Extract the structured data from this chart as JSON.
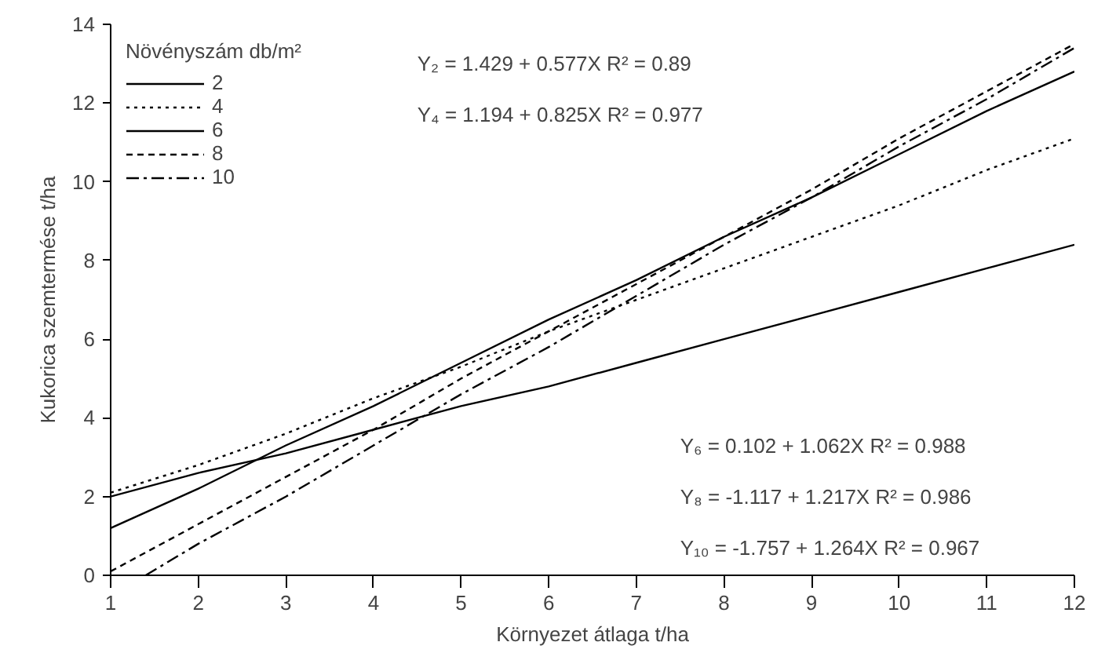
{
  "chart_data": {
    "type": "line",
    "xlabel": "Környezet átlaga t/ha",
    "ylabel": "Kukorica szemtermése t/ha",
    "legend_title": "Növényszám db/m²",
    "x": [
      1,
      2,
      3,
      4,
      5,
      6,
      7,
      8,
      9,
      10,
      11,
      12
    ],
    "series": [
      {
        "name": "2",
        "color": "#000000",
        "line_style": "solid",
        "values": [
          2.0,
          2.6,
          3.1,
          3.7,
          4.3,
          4.8,
          5.4,
          6.0,
          6.6,
          7.2,
          7.8,
          8.4
        ]
      },
      {
        "name": "4",
        "color": "#000000",
        "line_style": "dotted",
        "values": [
          2.1,
          2.8,
          3.6,
          4.5,
          5.3,
          6.2,
          7.0,
          7.8,
          8.6,
          9.4,
          10.3,
          11.1
        ]
      },
      {
        "name": "6",
        "color": "#000000",
        "line_style": "solid",
        "values": [
          1.2,
          2.2,
          3.3,
          4.3,
          5.4,
          6.5,
          7.5,
          8.6,
          9.6,
          10.7,
          11.8,
          12.8
        ]
      },
      {
        "name": "8",
        "color": "#000000",
        "line_style": "dashed",
        "values": [
          0.1,
          1.3,
          2.5,
          3.7,
          5.0,
          6.2,
          7.4,
          8.6,
          9.8,
          11.1,
          12.3,
          13.5
        ]
      },
      {
        "name": "10",
        "color": "#000000",
        "line_style": "dashdot",
        "x": [
          1.4,
          2,
          3,
          4,
          5,
          6,
          7,
          8,
          9,
          10,
          11,
          12
        ],
        "values": [
          0.0,
          0.8,
          2.0,
          3.3,
          4.6,
          5.8,
          7.1,
          8.4,
          9.6,
          10.9,
          12.1,
          13.4
        ]
      }
    ],
    "annotations": [
      "Y₂ = 1.429 + 0.577X  R² = 0.89",
      "Y₄ = 1.194 + 0.825X  R² = 0.977",
      "Y₆ = 0.102 + 1.062X  R² = 0.988",
      "Y₈ = -1.117 + 1.217X  R² = 0.986",
      "Y₁₀ = -1.757 + 1.264X  R² = 0.967"
    ],
    "xlim": [
      1,
      12
    ],
    "ylim": [
      0,
      14
    ],
    "xticks": [
      1,
      2,
      3,
      4,
      5,
      6,
      7,
      8,
      9,
      10,
      11,
      12
    ],
    "yticks": [
      0,
      2,
      4,
      6,
      8,
      10,
      12,
      14
    ],
    "grid": false,
    "legend": "top left",
    "marker": "none"
  }
}
